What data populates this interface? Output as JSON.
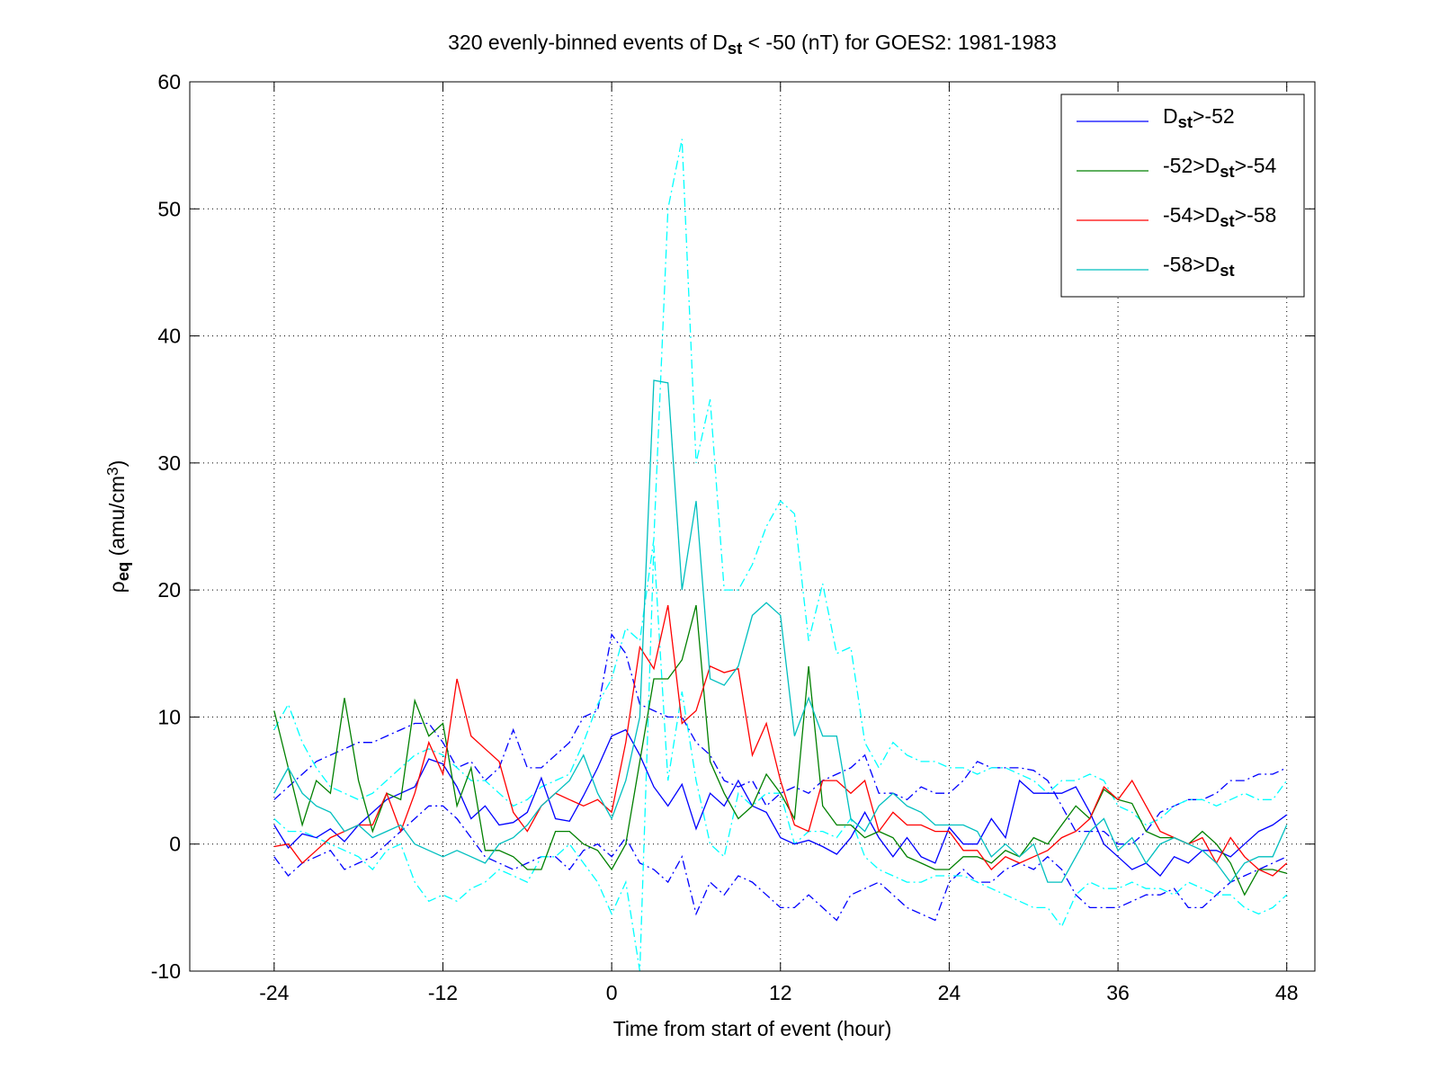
{
  "chart_data": {
    "type": "line",
    "title": [
      {
        "t": "320 evenly-binned events of D"
      },
      {
        "t": "st",
        "shift": "sub"
      },
      {
        "t": " < -50 (nT) for GOES2: 1981-1983"
      }
    ],
    "x_label": [
      {
        "t": "Time from start of event (hour)"
      }
    ],
    "y_label": [
      {
        "t": "ρ"
      },
      {
        "t": "eq",
        "shift": "sub"
      },
      {
        "t": " (amu/cm"
      },
      {
        "t": "3",
        "shift": "super"
      },
      {
        "t": ")"
      }
    ],
    "xlim": [
      -30,
      50
    ],
    "xticks": [
      -24,
      -12,
      0,
      12,
      24,
      36,
      48
    ],
    "ylim": [
      -10,
      60
    ],
    "yticks": [
      -10,
      0,
      10,
      20,
      30,
      40,
      50,
      60
    ],
    "grid": true,
    "legend": "upper right",
    "x": [
      -24,
      -23,
      -22,
      -21,
      -20,
      -19,
      -18,
      -17,
      -16,
      -15,
      -14,
      -13,
      -12,
      -11,
      -10,
      -9,
      -8,
      -7,
      -6,
      -5,
      -4,
      -3,
      -2,
      -1,
      0,
      1,
      2,
      3,
      4,
      5,
      6,
      7,
      8,
      9,
      10,
      11,
      12,
      13,
      14,
      15,
      16,
      17,
      18,
      19,
      20,
      21,
      22,
      23,
      24,
      25,
      26,
      27,
      28,
      29,
      30,
      31,
      32,
      33,
      34,
      35,
      36,
      37,
      38,
      39,
      40,
      41,
      42,
      43,
      44,
      45,
      46,
      47,
      48
    ],
    "series": [
      {
        "name": [
          {
            "t": "D"
          },
          {
            "t": "st",
            "shift": "sub"
          },
          {
            "t": ">-52"
          }
        ],
        "color": "#0000ff",
        "values": [
          1.5,
          -0.3,
          0.8,
          0.5,
          1.2,
          0.2,
          1.5,
          2.5,
          3.5,
          4.0,
          4.5,
          6.7,
          6.3,
          4.5,
          2.0,
          3.0,
          1.5,
          1.7,
          2.5,
          5.2,
          2.0,
          1.8,
          3.8,
          6.0,
          8.5,
          9.0,
          7.0,
          4.5,
          3.0,
          4.7,
          1.2,
          4.0,
          3.0,
          5.0,
          3.0,
          2.5,
          0.5,
          0,
          0.3,
          -0.2,
          -0.8,
          0.5,
          2.5,
          0.5,
          -1,
          0.5,
          -1,
          -1.5,
          1.3,
          0,
          0,
          2,
          0.5,
          5,
          4,
          4,
          4,
          4.5,
          2.5,
          0,
          -1,
          -2,
          -1.5,
          -2.5,
          -1,
          -1.5,
          -0.5,
          -0.5,
          -1,
          0,
          1,
          1.5,
          2.3
        ],
        "band": {
          "color": "#0000ff",
          "upper": [
            3.5,
            4.5,
            5.5,
            6.5,
            7,
            7.5,
            8,
            8,
            8.5,
            9,
            9.5,
            9.5,
            8,
            6,
            6.5,
            5,
            6,
            9,
            6,
            6,
            7,
            8,
            10,
            10.5,
            16.5,
            15,
            11,
            10.5,
            10,
            10,
            8,
            7,
            5,
            4.5,
            5,
            3,
            4,
            4.5,
            4,
            5,
            5.5,
            6,
            7,
            4,
            4,
            3.5,
            4.5,
            4,
            4,
            5,
            6.5,
            6,
            6,
            6,
            5.8,
            5,
            3,
            1,
            1,
            1,
            0,
            0,
            1,
            2.5,
            3,
            3.5,
            3.5,
            4,
            5,
            5,
            5.5,
            5.5,
            6
          ],
          "lower": [
            -1,
            -2.5,
            -1.5,
            -1,
            -0.5,
            -2,
            -1.5,
            -1,
            0,
            1,
            2,
            3,
            3,
            2,
            0.5,
            -1,
            -1.5,
            -2,
            -1.5,
            -1,
            -1,
            -2,
            -0.5,
            0,
            -1,
            0.5,
            -1.5,
            -2,
            -3,
            -1,
            -5.5,
            -3,
            -4,
            -2.5,
            -3,
            -4,
            -5,
            -5,
            -4,
            -5,
            -6,
            -4,
            -3.5,
            -3,
            -4,
            -5,
            -5.5,
            -6,
            -3,
            -2,
            -3,
            -3,
            -2,
            -1.5,
            -2,
            -1,
            -2,
            -4,
            -5,
            -5,
            -5,
            -4.5,
            -4,
            -4,
            -3.5,
            -5,
            -5,
            -4,
            -3,
            -2.5,
            -2,
            -1.5,
            -1
          ]
        }
      },
      {
        "name": [
          {
            "t": "-52>D"
          },
          {
            "t": "st",
            "shift": "sub"
          },
          {
            "t": ">-54"
          }
        ],
        "color": "#008000",
        "values": [
          10.5,
          6,
          1.5,
          5,
          4,
          11.5,
          5,
          1,
          4,
          3.5,
          11.3,
          8.5,
          9.5,
          3,
          6,
          -0.5,
          -0.5,
          -1,
          -2,
          -2,
          1,
          1,
          0,
          -0.5,
          -2,
          0,
          6.5,
          13,
          13,
          14.5,
          18.8,
          6.5,
          4,
          2,
          3,
          5.5,
          4,
          2,
          14,
          3,
          1.5,
          1.5,
          0.5,
          1,
          0.5,
          -1,
          -1.5,
          -2,
          -2,
          -1,
          -1,
          -1.5,
          -0.5,
          -1,
          0.5,
          0,
          1.5,
          3,
          2,
          4.3,
          3.5,
          3.2,
          1,
          0.5,
          0.5,
          0,
          1,
          0,
          -1.5,
          -4,
          -2,
          -2,
          -2.3
        ]
      },
      {
        "name": [
          {
            "t": "-54>D"
          },
          {
            "t": "st",
            "shift": "sub"
          },
          {
            "t": ">-58"
          }
        ],
        "color": "#ff0000",
        "values": [
          -0.2,
          0,
          -1.5,
          -0.5,
          0.5,
          1,
          1.5,
          1.5,
          4,
          1,
          4,
          8,
          5.5,
          13,
          8.5,
          7.5,
          6.5,
          2.5,
          1,
          3,
          4,
          3.5,
          3,
          3.5,
          2.5,
          8,
          15.5,
          13.8,
          18.8,
          9.5,
          10.5,
          14,
          13.5,
          13.8,
          7,
          9.5,
          5,
          1.5,
          1,
          5,
          5,
          4,
          5,
          1,
          2.5,
          1.5,
          1.5,
          1,
          1,
          -0.5,
          -0.5,
          -2,
          -1,
          -1.5,
          -1,
          -0.5,
          0.5,
          1,
          2,
          4.5,
          3.5,
          5,
          3,
          1,
          0.5,
          0,
          0.5,
          -1.5,
          0.5,
          -1,
          -2,
          -2.5,
          -1.5
        ]
      },
      {
        "name": [
          {
            "t": "-58>D"
          },
          {
            "t": "st",
            "shift": "sub"
          }
        ],
        "color": "#00bfbf",
        "values": [
          4,
          6,
          4,
          3,
          2.5,
          1,
          1.5,
          0.5,
          1,
          1.5,
          0,
          -0.5,
          -1,
          -0.5,
          -1,
          -1.5,
          0,
          0.5,
          1.5,
          3,
          4,
          5,
          7,
          4,
          2,
          5,
          10,
          36.5,
          36.3,
          20,
          27,
          13,
          12.5,
          14,
          18,
          19,
          18,
          8.5,
          11.5,
          8.5,
          8.5,
          2,
          1,
          3,
          4,
          3,
          2.5,
          1.5,
          1.5,
          1.5,
          1,
          -1,
          0,
          -1,
          0,
          -3,
          -3,
          -1,
          1,
          2,
          -0.5,
          0.5,
          -1.5,
          0,
          0.5,
          0,
          -0.5,
          -1.5,
          -3,
          -1.5,
          -1,
          -1,
          1.5
        ],
        "band": {
          "color": "#00ffff",
          "upper": [
            9,
            11,
            8,
            6,
            4.5,
            4,
            3.5,
            4,
            5,
            6,
            7,
            7.5,
            7,
            6,
            5,
            5,
            4,
            3,
            3.5,
            4.5,
            5,
            5.5,
            8,
            11,
            13,
            17,
            16,
            24,
            50,
            55.5,
            30,
            35,
            20,
            20,
            22,
            25,
            27,
            26,
            16,
            20.5,
            15,
            15.5,
            8,
            6,
            8,
            7,
            6.5,
            6.5,
            6,
            6,
            5.5,
            6,
            6,
            5.5,
            5,
            4,
            5,
            5,
            5.5,
            5,
            3,
            2.5,
            1.5,
            2,
            3,
            3.5,
            3.5,
            3,
            3.5,
            4,
            3.5,
            3.5,
            5
          ],
          "lower": [
            2,
            1,
            1,
            0.5,
            0,
            -0.5,
            -1,
            -2,
            -0.5,
            0,
            -3,
            -4.5,
            -4,
            -4.5,
            -3.5,
            -3,
            -2,
            -2.5,
            -3,
            -1,
            -1,
            0,
            -1.5,
            -3,
            -5.5,
            -3,
            -10,
            23.5,
            5,
            12,
            5,
            0,
            -1,
            4,
            3,
            4,
            4,
            0,
            1,
            1,
            0.5,
            2,
            -1,
            -2,
            -2.5,
            -3,
            -3,
            -2.5,
            -2.5,
            -2.5,
            -3,
            -3.5,
            -4,
            -4.5,
            -5,
            -5,
            -6.5,
            -4,
            -3,
            -3.5,
            -3.5,
            -3,
            -3.5,
            -3.5,
            -4,
            -3,
            -3.5,
            -4,
            -4,
            -5,
            -5.5,
            -5,
            -4
          ]
        }
      }
    ]
  }
}
